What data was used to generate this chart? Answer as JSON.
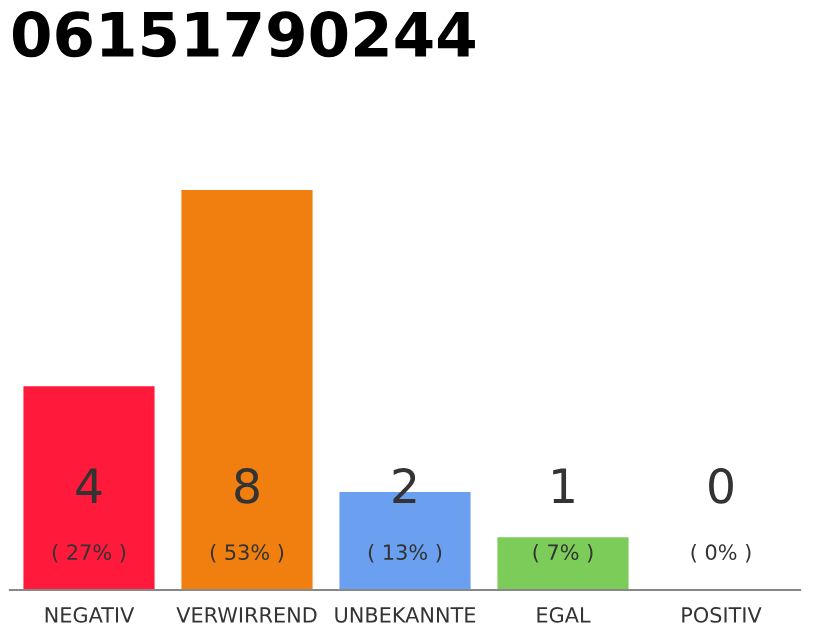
{
  "chart_data": {
    "type": "bar",
    "title": "06151790244",
    "categories": [
      "NEGATIV",
      "VERWIRREND",
      "UNBEKANNTE",
      "EGAL",
      "POSITIV"
    ],
    "values": [
      27,
      53,
      13,
      7,
      0
    ],
    "colors": [
      "#ff1a3c",
      "#f07f0f",
      "#6aa0ef",
      "#7ccc5a",
      "#cccccc"
    ],
    "value_labels": [
      "( 27% )",
      "( 53% )",
      "( 13% )",
      "( 7% )",
      "( 0% )"
    ],
    "annotations": [
      "4",
      "8",
      "2",
      "1",
      "0"
    ],
    "grid": false,
    "legend": false
  }
}
